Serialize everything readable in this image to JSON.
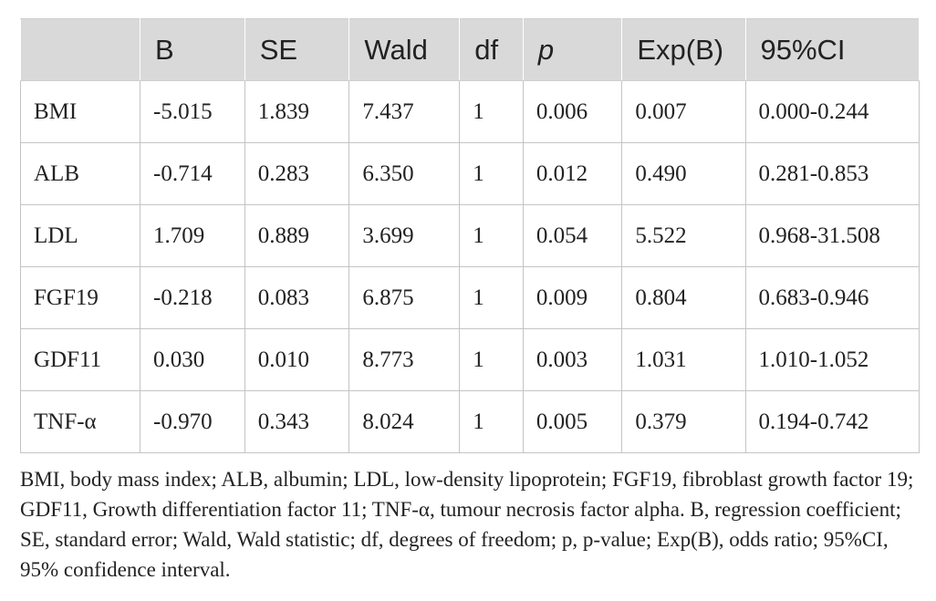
{
  "table": {
    "headers": [
      "",
      "B",
      "SE",
      "Wald",
      "df",
      "p",
      "Exp(B)",
      "95%CI"
    ],
    "rows": [
      [
        "BMI",
        "-5.015",
        "1.839",
        "7.437",
        "1",
        "0.006",
        "0.007",
        "0.000-0.244"
      ],
      [
        "ALB",
        "-0.714",
        "0.283",
        "6.350",
        "1",
        "0.012",
        "0.490",
        "0.281-0.853"
      ],
      [
        "LDL",
        "1.709",
        "0.889",
        "3.699",
        "1",
        "0.054",
        "5.522",
        "0.968-31.508"
      ],
      [
        "FGF19",
        "-0.218",
        "0.083",
        "6.875",
        "1",
        "0.009",
        "0.804",
        "0.683-0.946"
      ],
      [
        "GDF11",
        "0.030",
        "0.010",
        "8.773",
        "1",
        "0.003",
        "1.031",
        "1.010-1.052"
      ],
      [
        "TNF-α",
        "-0.970",
        "0.343",
        "8.024",
        "1",
        "0.005",
        "0.379",
        "0.194-0.742"
      ]
    ]
  },
  "footnote": "BMI, body mass index; ALB, albumin; LDL, low-density lipoprotein; FGF19, fibroblast growth factor 19; GDF11, Growth differentiation factor 11; TNF-α, tumour necrosis factor alpha. B, regression coefficient; SE, standard error; Wald, Wald statistic; df, degrees of freedom; p, p-value; Exp(B), odds ratio; 95%CI, 95% confidence interval.",
  "colors": {
    "header_bg": "#d9d9d9",
    "border": "#c4c4c4",
    "text": "#222222"
  }
}
